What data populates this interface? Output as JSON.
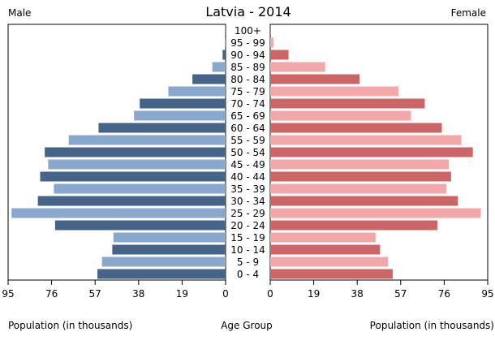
{
  "chart_data": {
    "type": "bar",
    "title": "Latvia - 2014",
    "left_label": "Male",
    "right_label": "Female",
    "left_xlabel": "Population (in thousands)",
    "right_xlabel": "Population (in thousands)",
    "center_label": "Age Group",
    "xlim": [
      0,
      95
    ],
    "ticks": [
      "95",
      "76",
      "57",
      "38",
      "19",
      "0"
    ],
    "ticks_right": [
      "0",
      "19",
      "38",
      "57",
      "76",
      "95"
    ],
    "categories": [
      "100+",
      "95 - 99",
      "90 - 94",
      "85 - 89",
      "80 - 84",
      "75 - 79",
      "70 - 74",
      "65 - 69",
      "60 - 64",
      "55 - 59",
      "50 - 54",
      "45 - 49",
      "40 - 44",
      "35 - 39",
      "30 - 34",
      "25 - 29",
      "20 - 24",
      "15 - 19",
      "10 - 14",
      "5 - 9",
      "0 - 4"
    ],
    "series": [
      {
        "side": "male",
        "values": [
          0.1,
          0.3,
          1.3,
          5.8,
          14.5,
          25.0,
          37.5,
          40.0,
          55.5,
          68.5,
          79.0,
          77.5,
          81.0,
          75.0,
          82.0,
          93.5,
          74.5,
          49.0,
          49.5,
          54.0,
          56.0
        ]
      },
      {
        "side": "female",
        "values": [
          0.3,
          1.4,
          8.0,
          24.0,
          39.0,
          56.0,
          67.5,
          61.5,
          75.0,
          83.5,
          88.5,
          78.0,
          79.0,
          77.0,
          82.0,
          92.0,
          73.0,
          46.0,
          48.0,
          51.5,
          53.5
        ]
      }
    ],
    "colors": {
      "male_dark": "#46638a",
      "male_light": "#89a8cc",
      "female_dark": "#cc6666",
      "female_light": "#f2a8a8",
      "frame": "#000000"
    }
  }
}
